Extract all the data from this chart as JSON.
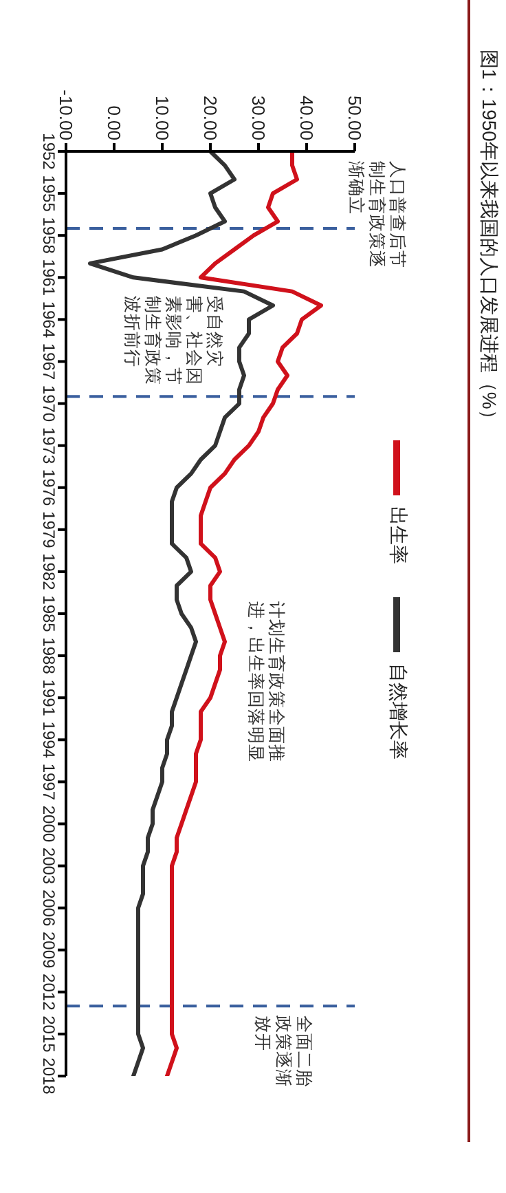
{
  "chart_data": {
    "type": "line",
    "title": "图1：1950年以来我国的人口发展进程（%）",
    "x": [
      1952,
      1953,
      1954,
      1955,
      1956,
      1957,
      1958,
      1959,
      1960,
      1961,
      1962,
      1963,
      1964,
      1965,
      1966,
      1967,
      1968,
      1969,
      1970,
      1971,
      1972,
      1973,
      1974,
      1975,
      1976,
      1977,
      1978,
      1979,
      1980,
      1981,
      1982,
      1983,
      1984,
      1985,
      1986,
      1987,
      1988,
      1989,
      1990,
      1991,
      1992,
      1993,
      1994,
      1995,
      1996,
      1997,
      1998,
      1999,
      2000,
      2001,
      2002,
      2003,
      2004,
      2005,
      2006,
      2007,
      2008,
      2009,
      2010,
      2011,
      2012,
      2013,
      2014,
      2015,
      2016,
      2017,
      2018
    ],
    "series": [
      {
        "name": "出生率",
        "color": "#d0111b",
        "values": [
          37,
          37,
          38,
          33,
          32,
          34,
          29,
          25,
          21,
          18,
          37,
          43,
          39,
          38,
          35,
          34,
          36,
          34,
          33,
          31,
          30,
          28,
          25,
          23,
          20,
          19,
          18,
          18,
          18,
          21,
          22,
          20,
          20,
          21,
          22,
          23,
          22,
          22,
          21,
          20,
          18,
          18,
          18,
          17,
          17,
          17,
          16,
          15,
          14,
          13,
          13,
          12,
          12,
          12,
          12,
          12,
          12,
          12,
          12,
          12,
          12,
          12,
          12,
          12,
          13,
          12,
          11
        ]
      },
      {
        "name": "自然增长率",
        "color": "#333333",
        "values": [
          20,
          23,
          25,
          20,
          21,
          23,
          17,
          10,
          -5,
          4,
          27,
          33,
          28,
          28,
          26,
          26,
          27,
          26,
          26,
          23,
          22,
          21,
          18,
          16,
          13,
          12,
          12,
          12,
          12,
          15,
          16,
          13,
          13,
          14,
          16,
          17,
          16,
          15,
          14,
          13,
          12,
          12,
          11,
          11,
          10,
          10,
          9,
          8,
          8,
          7,
          7,
          6,
          6,
          6,
          5,
          5,
          5,
          5,
          5,
          5,
          5,
          5,
          5,
          5,
          6,
          5,
          4
        ]
      }
    ],
    "orientation": "horizontal",
    "ylim": [
      2018,
      1952
    ],
    "yticks": [
      1952,
      1955,
      1958,
      1961,
      1964,
      1967,
      1970,
      1973,
      1976,
      1979,
      1982,
      1985,
      1988,
      1991,
      1994,
      1997,
      2000,
      2003,
      2006,
      2009,
      2012,
      2015,
      2018
    ],
    "xlim": [
      -10,
      50
    ],
    "xticks": [
      {
        "value": -10,
        "label": "-10.00"
      },
      {
        "value": 0,
        "label": "0.00"
      },
      {
        "value": 10,
        "label": "10.00"
      },
      {
        "value": 20,
        "label": "20.00"
      },
      {
        "value": 30,
        "label": "30.00"
      },
      {
        "value": 40,
        "label": "40.00"
      },
      {
        "value": 50,
        "label": "50.00"
      }
    ],
    "ref_lines": [
      {
        "axis": "y",
        "value": 1957.5,
        "color": "#3a5f9e",
        "line_style": "dashed"
      },
      {
        "axis": "y",
        "value": 1969.5,
        "color": "#3a5f9e",
        "line_style": "dashed"
      },
      {
        "axis": "y",
        "value": 2013,
        "color": "#3a5f9e",
        "line_style": "dashed"
      }
    ],
    "annotations": [
      "人口普查后节制生育政策逐渐确立",
      "受自然灾害、社会因素影响，节制生育政策波折前行",
      "计划生育政策全面推进，出生率回落明显",
      "全面二胎政策逐渐放开"
    ],
    "legend": "right",
    "grid": false,
    "marker": "none",
    "line_style": "solid"
  }
}
